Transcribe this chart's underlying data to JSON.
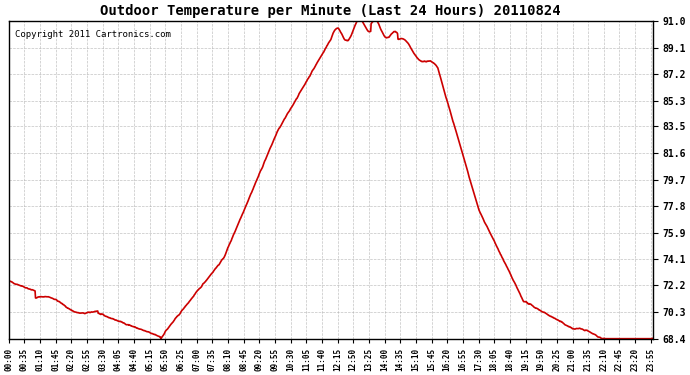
{
  "title": "Outdoor Temperature per Minute (Last 24 Hours) 20110824",
  "copyright": "Copyright 2011 Cartronics.com",
  "line_color": "#cc0000",
  "line_width": 1.2,
  "background_color": "#ffffff",
  "grid_color": "#aaaaaa",
  "yticks": [
    68.4,
    70.3,
    72.2,
    74.1,
    75.9,
    77.8,
    79.7,
    81.6,
    83.5,
    85.3,
    87.2,
    89.1,
    91.0
  ],
  "ylim": [
    68.4,
    91.0
  ],
  "x_labels": [
    "00:00",
    "00:35",
    "01:10",
    "01:45",
    "02:20",
    "02:55",
    "03:30",
    "04:05",
    "04:40",
    "05:15",
    "05:50",
    "06:25",
    "07:00",
    "07:35",
    "08:10",
    "08:45",
    "09:20",
    "09:55",
    "10:30",
    "11:05",
    "11:40",
    "12:15",
    "12:50",
    "13:25",
    "14:00",
    "14:35",
    "15:10",
    "15:45",
    "16:20",
    "16:55",
    "17:30",
    "18:05",
    "18:40",
    "19:15",
    "19:50",
    "20:25",
    "21:00",
    "21:35",
    "22:10",
    "22:45",
    "23:20",
    "23:55"
  ]
}
